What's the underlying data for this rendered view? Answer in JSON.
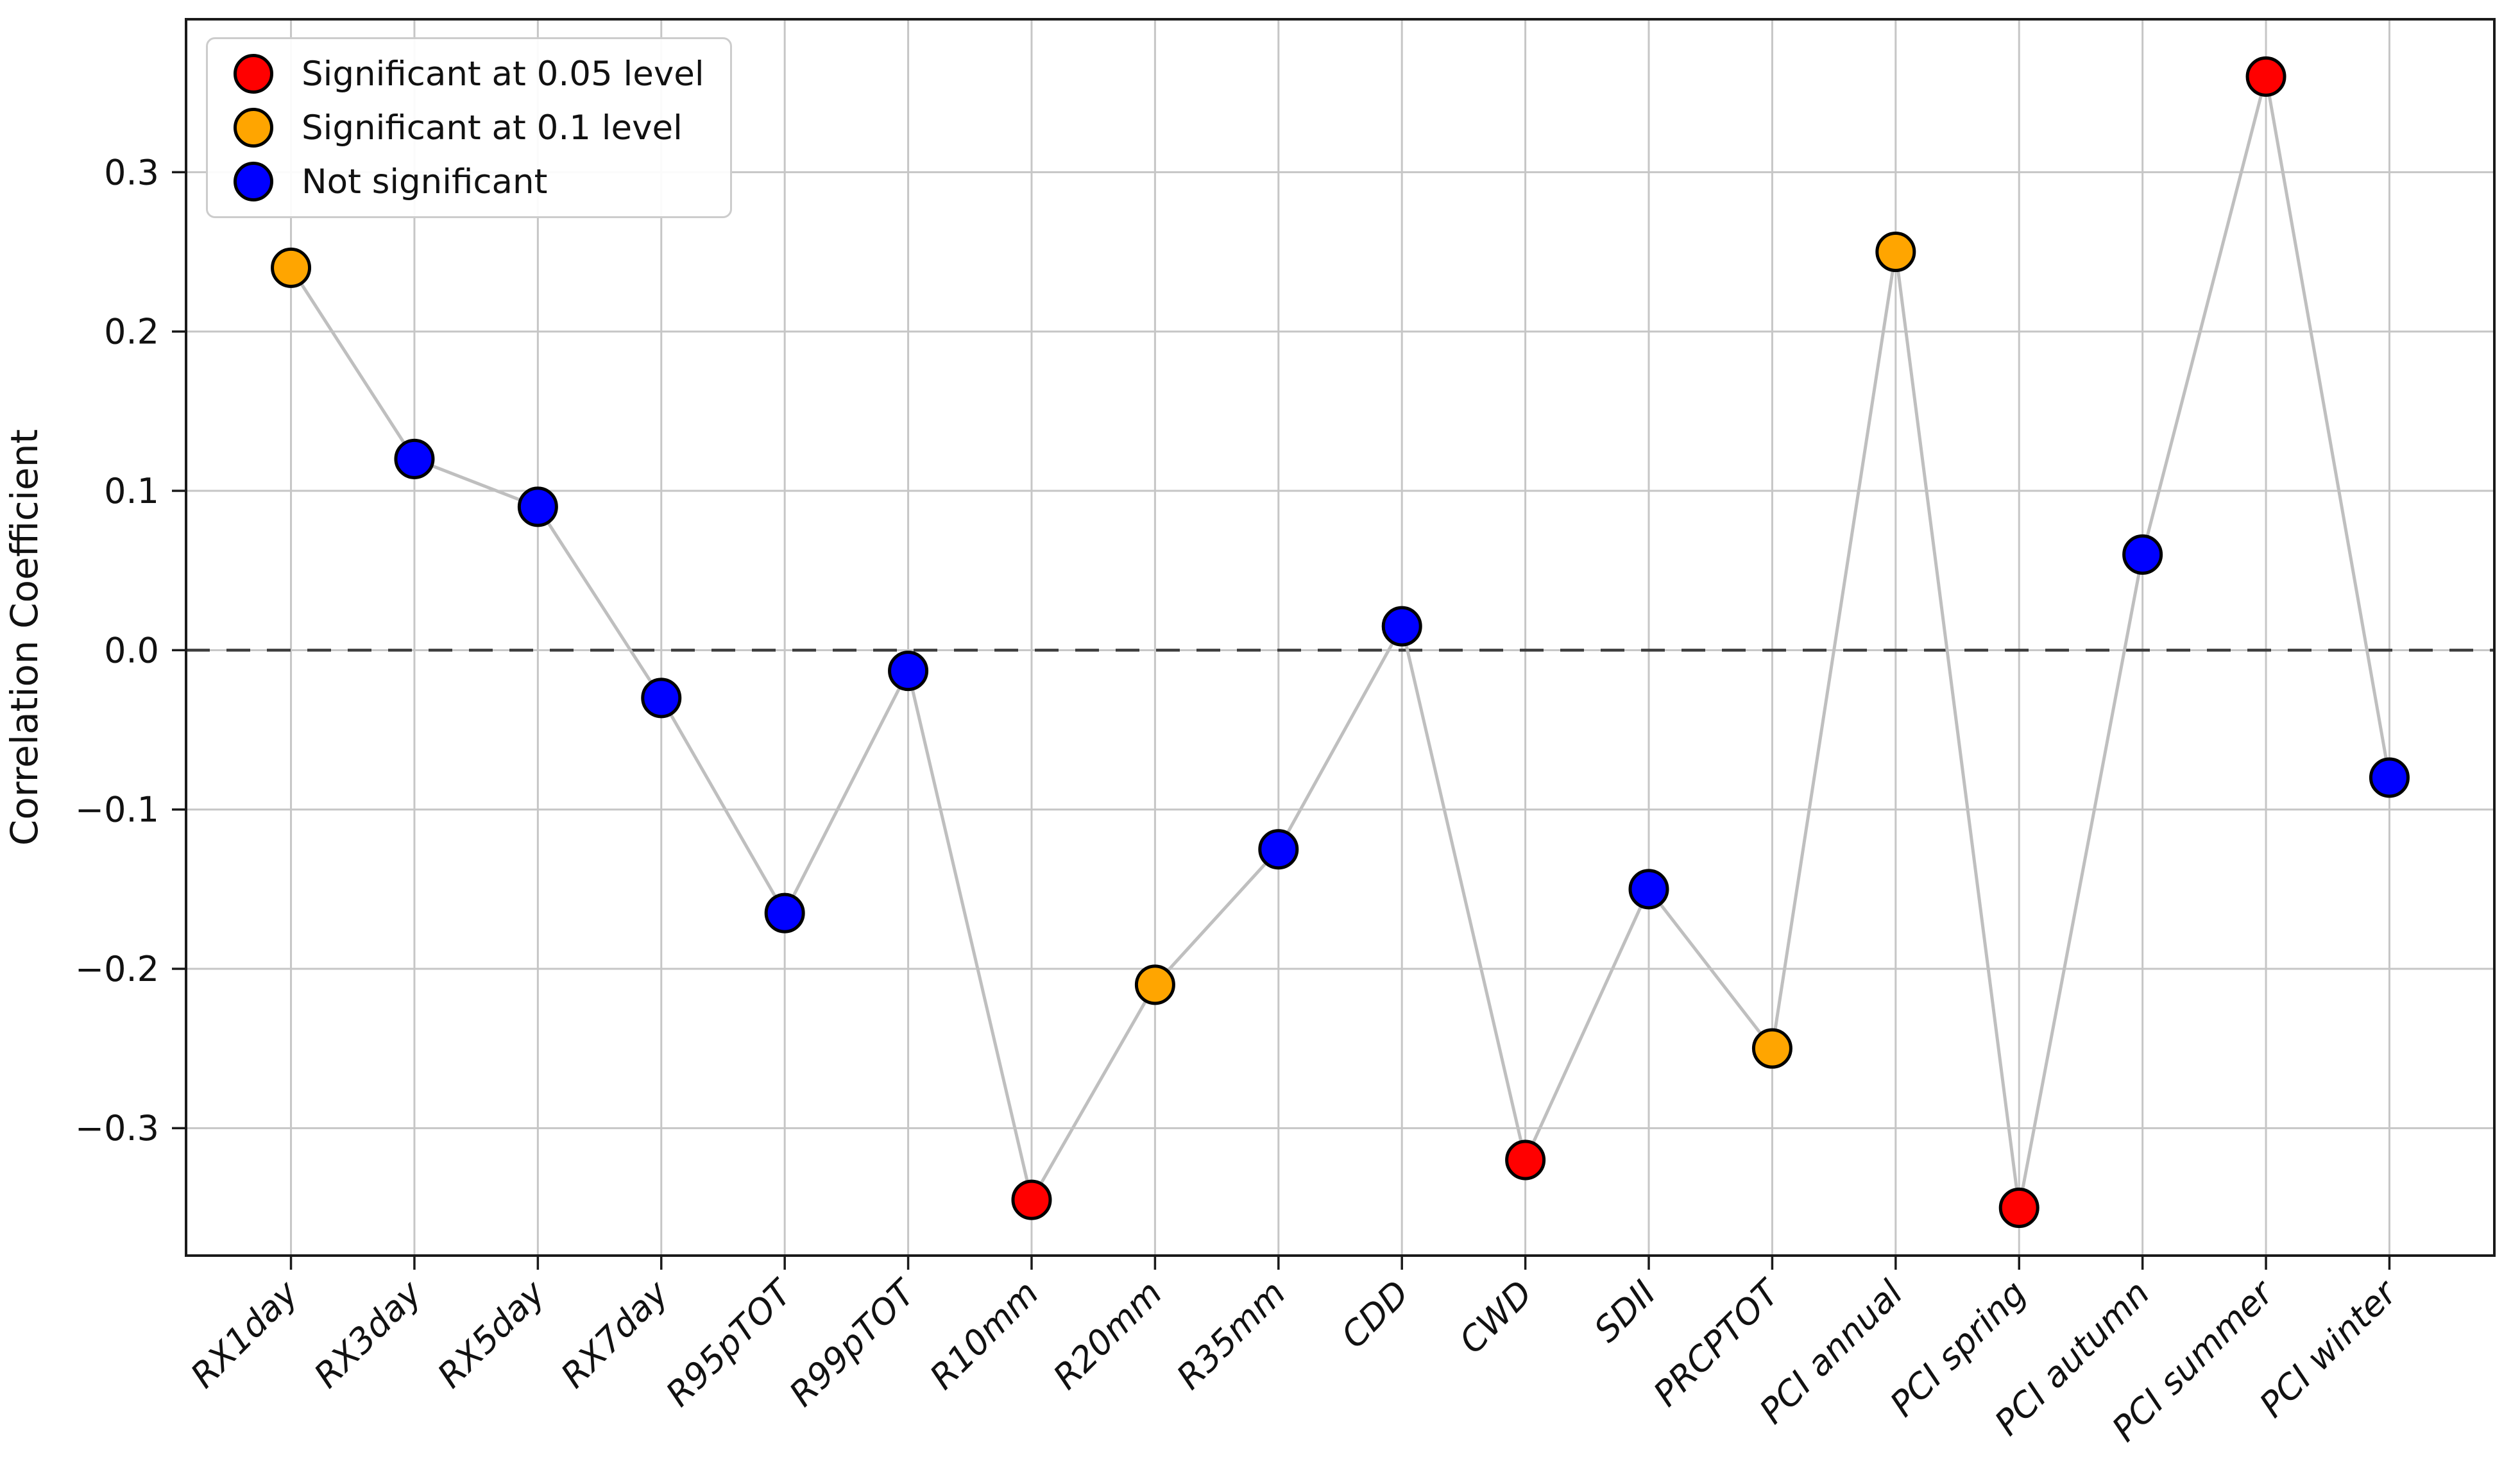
{
  "chart_data": {
    "type": "scatter",
    "connected": true,
    "title": "",
    "xlabel": "",
    "ylabel": "Correlation Coefficient",
    "categories": [
      "RX1day",
      "RX3day",
      "RX5day",
      "RX7day",
      "R95pTOT",
      "R99pTOT",
      "R10mm",
      "R20mm",
      "R35mm",
      "CDD",
      "CWD",
      "SDII",
      "PRCPTOT",
      "PCI annual",
      "PCI spring",
      "PCI autumn",
      "PCI summer",
      "PCI winter"
    ],
    "values": [
      0.24,
      0.12,
      0.09,
      -0.03,
      -0.165,
      -0.013,
      -0.345,
      -0.21,
      -0.125,
      0.015,
      -0.32,
      -0.15,
      -0.25,
      0.25,
      -0.35,
      0.06,
      0.36,
      -0.08
    ],
    "significance": [
      "0.1",
      "ns",
      "ns",
      "ns",
      "ns",
      "ns",
      "0.05",
      "0.1",
      "ns",
      "ns",
      "0.05",
      "ns",
      "0.1",
      "0.1",
      "0.05",
      "ns",
      "0.05",
      "ns"
    ],
    "yticks": {
      "values": [
        0.3,
        0.2,
        0.1,
        0.0,
        -0.1,
        -0.2,
        -0.3
      ],
      "labels": [
        "0.3",
        "0.2",
        "0.1",
        "0.0",
        "−0.1",
        "−0.2",
        "−0.3"
      ]
    },
    "ylim": [
      -0.38,
      0.396
    ],
    "grid": true,
    "zero_line": {
      "value": 0,
      "style": "dashed"
    },
    "legend": {
      "position": "upper-left",
      "entries": [
        {
          "label": "Significant at 0.05 level",
          "color": "#ff0000"
        },
        {
          "label": "Significant at 0.1 level",
          "color": "#ffa500"
        },
        {
          "label": "Not significant",
          "color": "#0000ff"
        }
      ]
    },
    "colors": {
      "significant_005": "#ff0000",
      "significant_01": "#ffa500",
      "not_significant": "#0000ff",
      "marker_edge": "#000000",
      "connector": "#bfbfbf",
      "grid": "#c6c6c6",
      "zero_line": "#3d3d3d",
      "axis": "#1a1a1a",
      "legend_border": "#cccccc"
    }
  }
}
